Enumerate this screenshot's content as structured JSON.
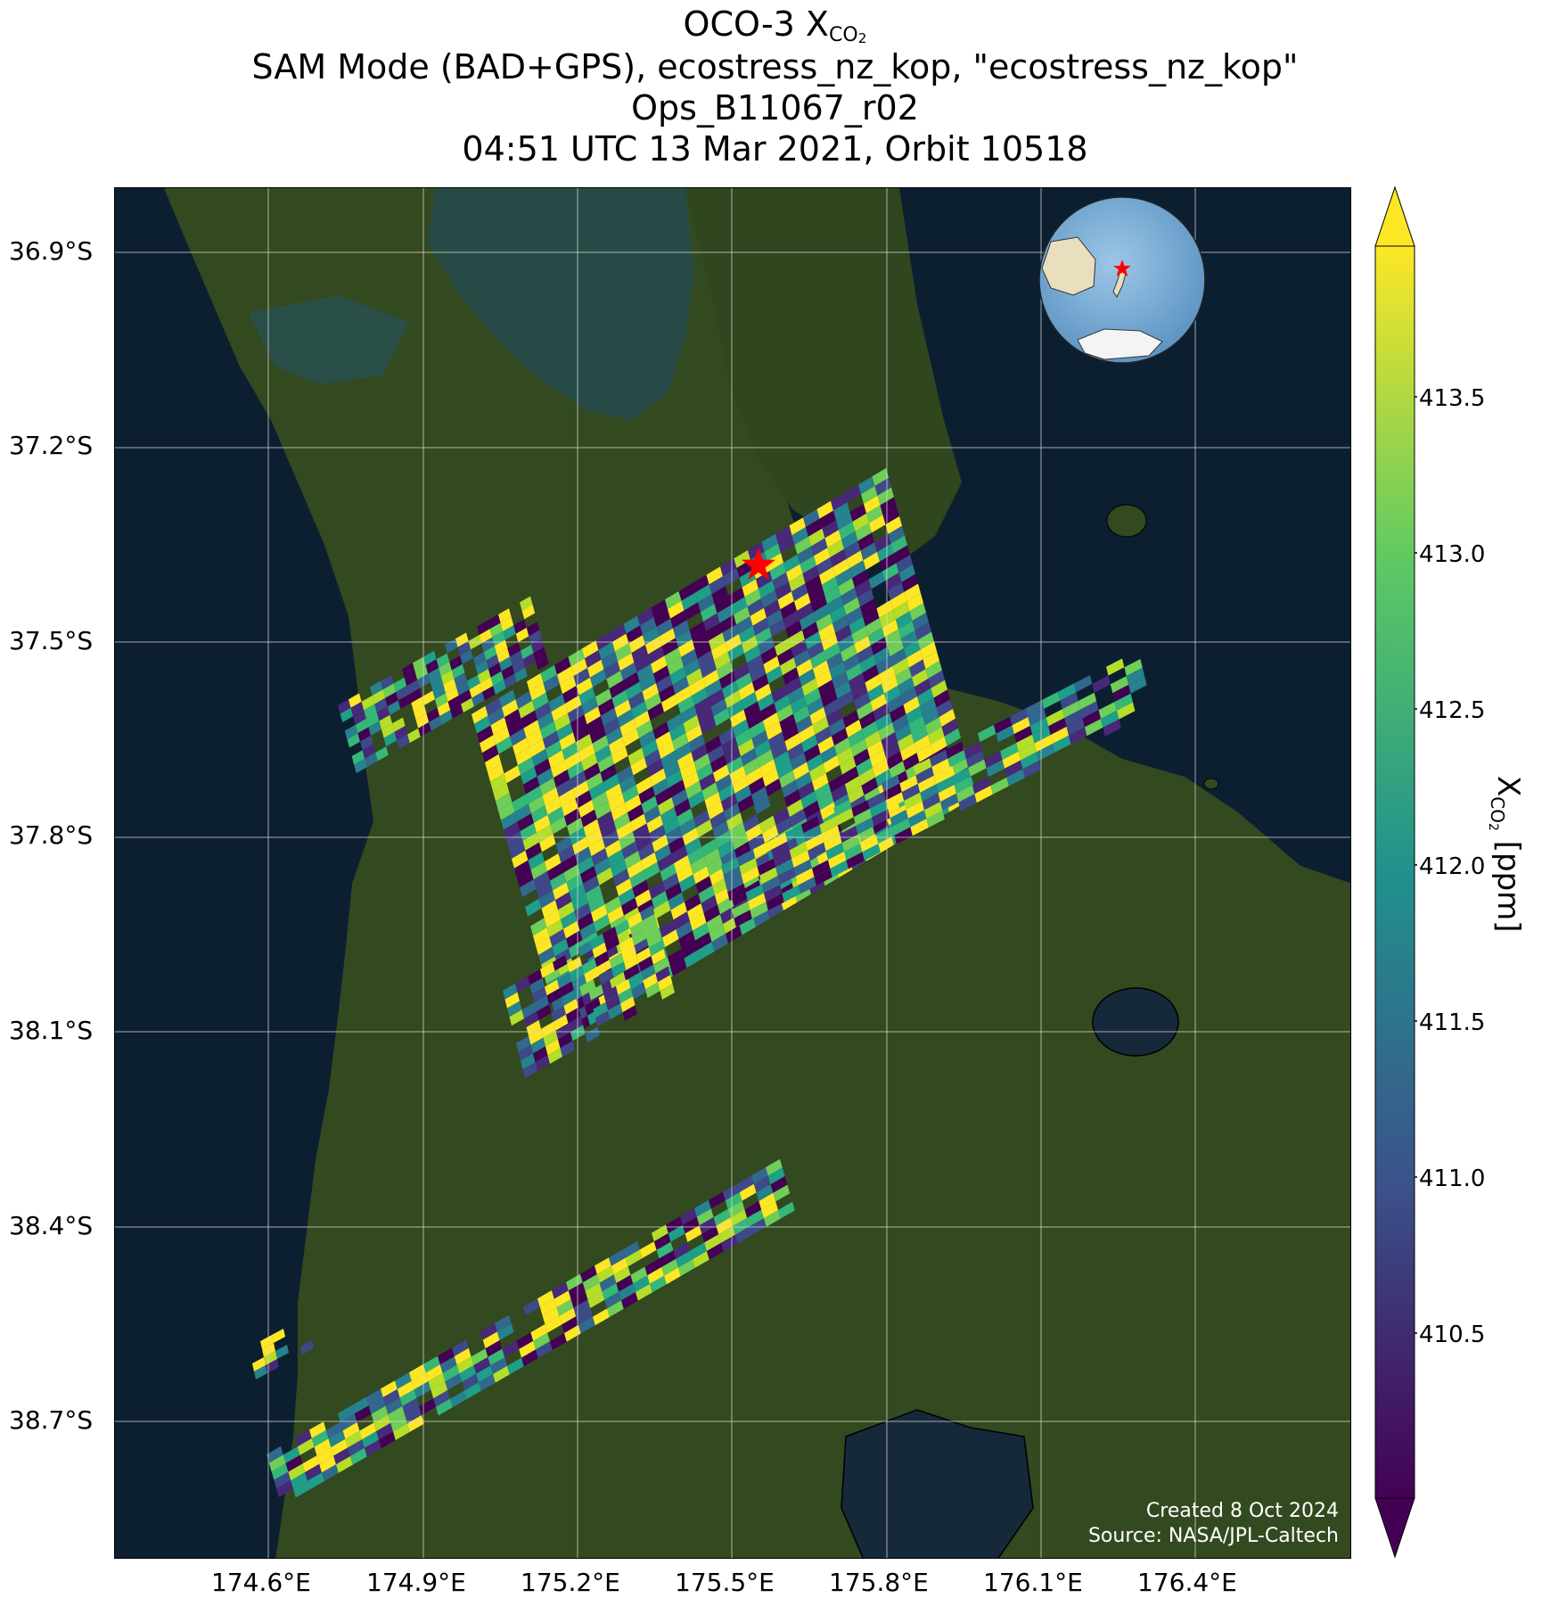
{
  "title": {
    "line1_prefix": "OCO-3 X",
    "line1_sub": "CO2",
    "line2": "SAM Mode (BAD+GPS), ecostress_nz_kop, \"ecostress_nz_kop\"",
    "line3": "Ops_B11067_r02",
    "line4": "04:51 UTC 13 Mar 2021, Orbit 10518"
  },
  "map": {
    "lat_ticks": [
      "36.9°S",
      "37.2°S",
      "37.5°S",
      "37.8°S",
      "38.1°S",
      "38.4°S",
      "38.7°S"
    ],
    "lon_ticks": [
      "174.6°E",
      "174.9°E",
      "175.2°E",
      "175.5°E",
      "175.8°E",
      "176.1°E",
      "176.4°E"
    ],
    "target_marker": "red-star",
    "inset": "globe-locator-map",
    "credit_line1": "Created 8 Oct 2024",
    "credit_line2": "Source: NASA/JPL-Caltech"
  },
  "colorbar": {
    "label_prefix": "X",
    "label_sub": "CO2",
    "label_suffix": " [ppm]",
    "ticks": [
      "413.5",
      "413.0",
      "412.5",
      "412.0",
      "411.5",
      "411.0",
      "410.5"
    ],
    "colormap": [
      "#440154",
      "#3b528b",
      "#21918c",
      "#5ec962",
      "#fde725"
    ],
    "extend": "both"
  },
  "colors": {
    "ocean": "#0c1f31",
    "land": "#33491f",
    "grid": "#d9d9d9",
    "marker": "#ff0000"
  }
}
